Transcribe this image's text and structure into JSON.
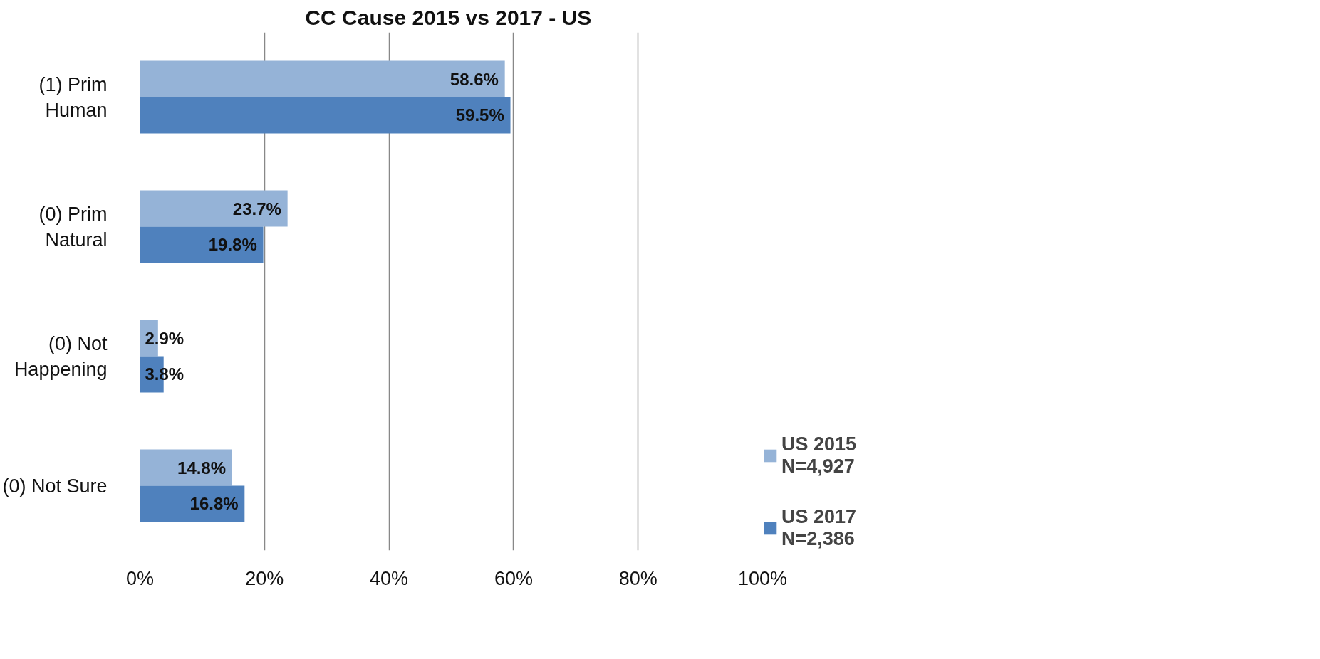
{
  "chart_data": {
    "type": "bar",
    "orientation": "horizontal",
    "title": "CC Cause  2015 vs 2017 - US",
    "categories": [
      "(1) Prim Human",
      "(0) Prim Natural",
      "(0) Not Happening",
      "(0) Not Sure"
    ],
    "series": [
      {
        "name": "US 2015\nN=4,927",
        "color": "#95b3d7",
        "values": [
          58.6,
          23.7,
          2.9,
          14.8
        ],
        "value_labels": [
          "58.6%",
          "23.7%",
          "2.9%",
          "14.8%"
        ]
      },
      {
        "name": "US 2017\nN=2,386",
        "color": "#4f81bd",
        "values": [
          59.5,
          19.8,
          3.8,
          16.8
        ],
        "value_labels": [
          "59.5%",
          "19.8%",
          "3.8%",
          "16.8%"
        ]
      }
    ],
    "xlim": [
      0,
      100
    ],
    "xticks": [
      {
        "value": 0,
        "label": "0%"
      },
      {
        "value": 20,
        "label": "20%"
      },
      {
        "value": 40,
        "label": "40%"
      },
      {
        "value": 60,
        "label": "60%"
      },
      {
        "value": 80,
        "label": "80%"
      },
      {
        "value": 100,
        "label": "100%"
      }
    ],
    "grid": "x",
    "legend": "right"
  }
}
